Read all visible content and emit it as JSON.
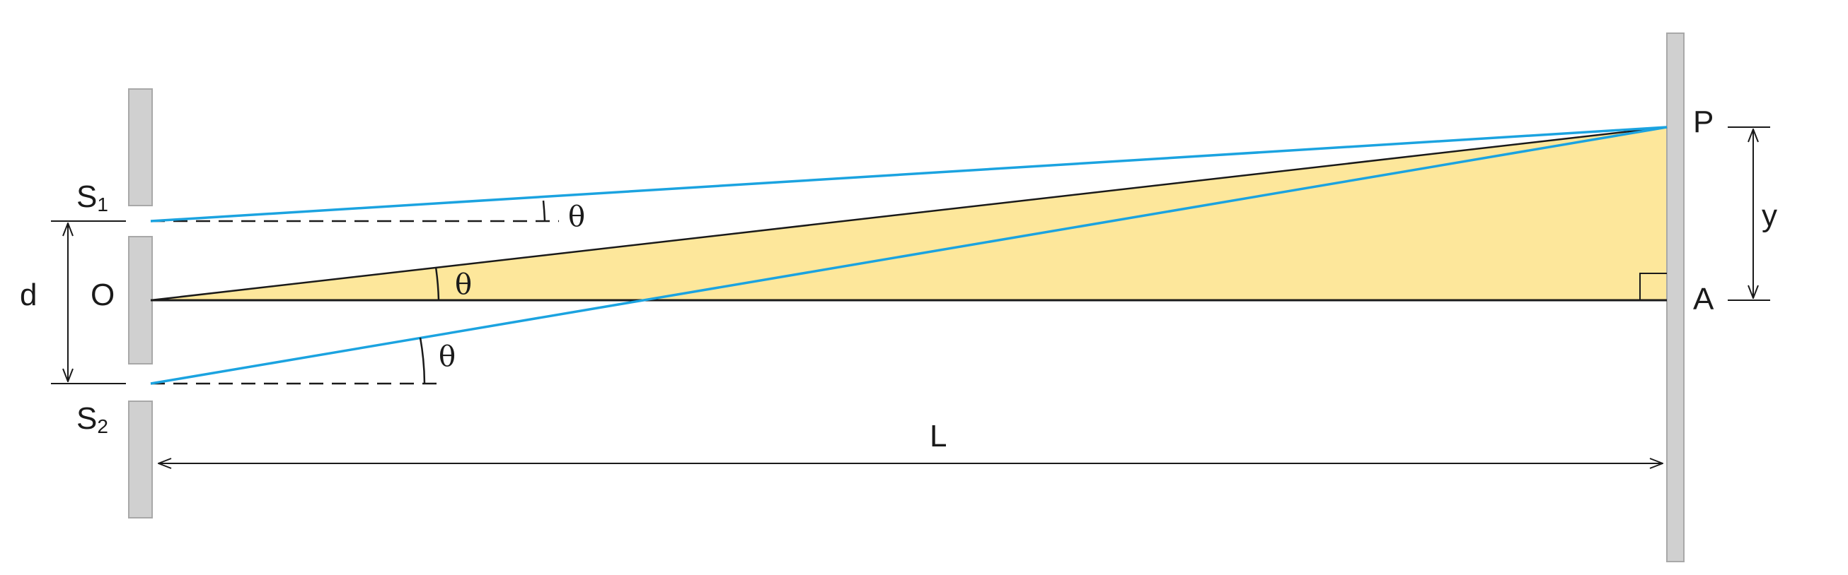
{
  "labels": {
    "s1": "S",
    "s1_sub": "1",
    "s2": "S",
    "s2_sub": "2",
    "d": "d",
    "o": "O",
    "p": "P",
    "a": "A",
    "y": "y",
    "l": "L",
    "theta": "θ"
  },
  "colors": {
    "ray": "#1ba3e0",
    "triangle_fill": "#fde79b",
    "barrier": "#d0d0d0",
    "line": "#1a1a1a"
  }
}
